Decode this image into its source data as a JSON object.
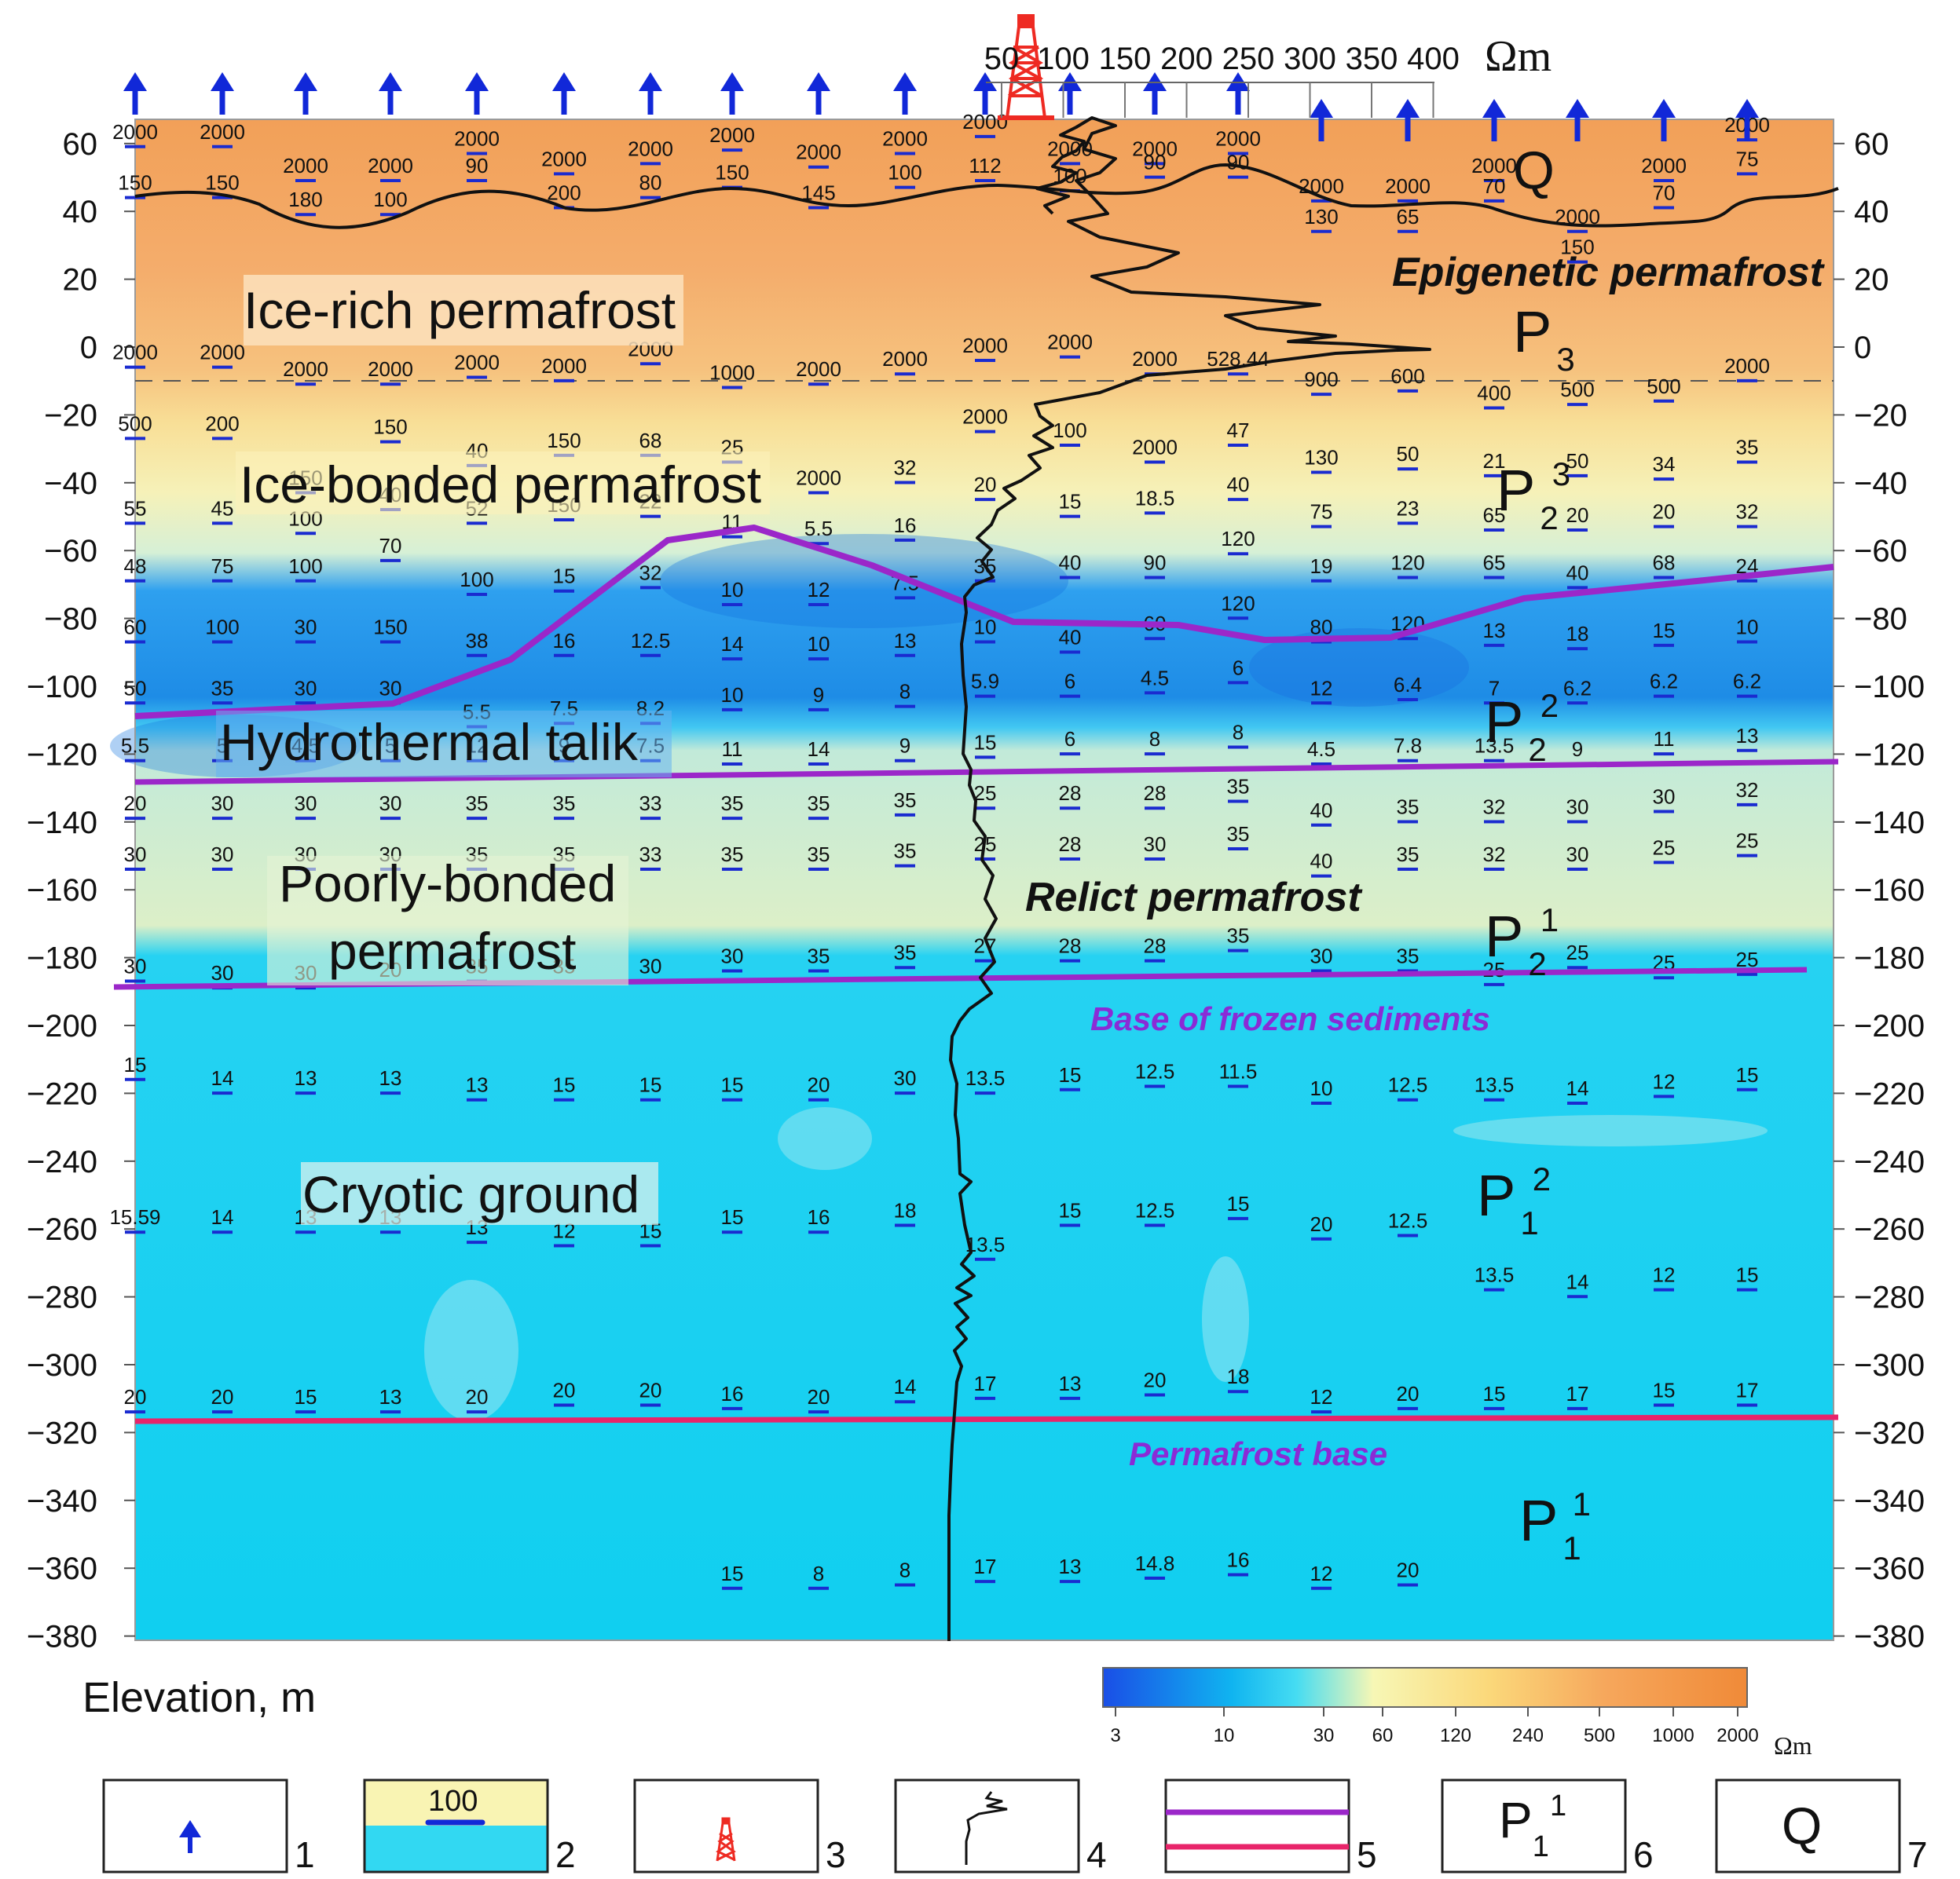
{
  "axis": {
    "ylabel": "Elevation, m",
    "y_ticks": [
      60,
      40,
      20,
      0,
      -20,
      -40,
      -60,
      -80,
      -100,
      -120,
      -140,
      -160,
      -180,
      -200,
      -220,
      -240,
      -260,
      -280,
      -300,
      -320,
      -340,
      -360,
      -380
    ]
  },
  "log_scale": {
    "ticks": [
      "50",
      "100",
      "150",
      "200",
      "250",
      "300",
      "350",
      "400"
    ],
    "unit": "Ωm"
  },
  "labels": {
    "ice_rich": "Ice-rich permafrost",
    "ice_bonded": "Ice-bonded permafrost",
    "talik": "Hydrothermal talik",
    "poorly_1": "Poorly-bonded",
    "poorly_2": "permafrost",
    "cryotic": "Cryotic ground",
    "epigenetic": "Epigenetic permafrost",
    "relict": "Relict permafrost",
    "base_frozen": "Base of frozen sediments",
    "permafrost_base": "Permafrost base",
    "q_label": "Q"
  },
  "strata": [
    {
      "base": "P",
      "sub": "3",
      "sup": ""
    },
    {
      "base": "P",
      "sub": "2",
      "sup": "3"
    },
    {
      "base": "P",
      "sub": "2",
      "sup": "2"
    },
    {
      "base": "P",
      "sub": "2",
      "sup": "1"
    },
    {
      "base": "P",
      "sub": "1",
      "sup": "2"
    },
    {
      "base": "P",
      "sub": "1",
      "sup": "1"
    }
  ],
  "colorbar": {
    "labels": [
      "3",
      "10",
      "30",
      "60",
      "120",
      "240",
      "500",
      "1000",
      "2000"
    ],
    "unit": "Ωm",
    "colors": [
      "#1a4ee6",
      "#10b4f0",
      "#45dcf2",
      "#f7f7b5",
      "#fbd87a",
      "#f6a75c",
      "#f08a38"
    ]
  },
  "legend": {
    "numbers": [
      "1",
      "2",
      "3",
      "4",
      "5",
      "6",
      "7"
    ],
    "item2_value": "100",
    "item6": {
      "base": "P",
      "sub": "1",
      "sup": "1"
    },
    "item7": "Q"
  },
  "colors": {
    "boundary": "#9b27c9",
    "permafrost_base": "#e8246a",
    "arrow": "#1128d8",
    "derrick": "#ee2a22"
  },
  "soundings": [
    {
      "x": 172,
      "values": [
        [
          "2000",
          60
        ],
        [
          "150",
          45
        ],
        [
          "2000",
          -5
        ],
        [
          "500",
          -26
        ],
        [
          "55",
          -51
        ],
        [
          "48",
          -68
        ],
        [
          "60",
          -86
        ],
        [
          "50",
          -104
        ],
        [
          "5.5",
          -121
        ],
        [
          "20",
          -138
        ],
        [
          "30",
          -153
        ],
        [
          "30",
          -186
        ],
        [
          "15",
          -215
        ],
        [
          "15.59",
          -260
        ],
        [
          "20",
          -313
        ]
      ]
    },
    {
      "x": 283,
      "values": [
        [
          "2000",
          60
        ],
        [
          "150",
          45
        ],
        [
          "2000",
          -5
        ],
        [
          "200",
          -26
        ],
        [
          "45",
          -51
        ],
        [
          "75",
          -68
        ],
        [
          "100",
          -86
        ],
        [
          "35",
          -104
        ],
        [
          "5",
          -121
        ],
        [
          "30",
          -138
        ],
        [
          "30",
          -153
        ],
        [
          "30",
          -188
        ],
        [
          "14",
          -219
        ],
        [
          "14",
          -260
        ],
        [
          "20",
          -313
        ]
      ]
    },
    {
      "x": 389,
      "values": [
        [
          "2000",
          50
        ],
        [
          "180",
          40
        ],
        [
          "2000",
          -10
        ],
        [
          "150",
          -42
        ],
        [
          "100",
          -54
        ],
        [
          "100",
          -68
        ],
        [
          "30",
          -86
        ],
        [
          "30",
          -104
        ],
        [
          "4.5",
          -121
        ],
        [
          "30",
          -138
        ],
        [
          "30",
          -153
        ],
        [
          "30",
          -188
        ],
        [
          "13",
          -219
        ],
        [
          "13",
          -260
        ],
        [
          "15",
          -313
        ]
      ]
    },
    {
      "x": 497,
      "values": [
        [
          "2000",
          50
        ],
        [
          "100",
          40
        ],
        [
          "2000",
          -10
        ],
        [
          "150",
          -27
        ],
        [
          "40",
          -47
        ],
        [
          "70",
          -62
        ],
        [
          "150",
          -86
        ],
        [
          "30",
          -104
        ],
        [
          "5",
          -121
        ],
        [
          "30",
          -138
        ],
        [
          "30",
          -153
        ],
        [
          "20",
          -187
        ],
        [
          "13",
          -219
        ],
        [
          "13",
          -260
        ],
        [
          "13",
          -313
        ]
      ]
    },
    {
      "x": 607,
      "values": [
        [
          "2000",
          58
        ],
        [
          "90",
          50
        ],
        [
          "2000",
          -8
        ],
        [
          "40",
          -34
        ],
        [
          "52",
          -51
        ],
        [
          "100",
          -72
        ],
        [
          "38",
          -90
        ],
        [
          "5.5",
          -111
        ],
        [
          "12",
          -121
        ],
        [
          "35",
          -138
        ],
        [
          "35",
          -153
        ],
        [
          "35",
          -186
        ],
        [
          "13",
          -221
        ],
        [
          "13",
          -263
        ],
        [
          "20",
          -313
        ]
      ]
    },
    {
      "x": 718,
      "values": [
        [
          "2000",
          52
        ],
        [
          "200",
          42
        ],
        [
          "2000",
          -9
        ],
        [
          "150",
          -31
        ],
        [
          "150",
          -50
        ],
        [
          "15",
          -71
        ],
        [
          "16",
          -90
        ],
        [
          "7.5",
          -110
        ],
        [
          "9",
          -121
        ],
        [
          "35",
          -138
        ],
        [
          "35",
          -153
        ],
        [
          "35",
          -186
        ],
        [
          "15",
          -221
        ],
        [
          "12",
          -264
        ],
        [
          "20",
          -311
        ]
      ]
    },
    {
      "x": 828,
      "values": [
        [
          "2000",
          55
        ],
        [
          "80",
          45
        ],
        [
          "2000",
          -4
        ],
        [
          "68",
          -31
        ],
        [
          "22",
          -49
        ],
        [
          "32",
          -70
        ],
        [
          "12.5",
          -90
        ],
        [
          "8.2",
          -110
        ],
        [
          "7.5",
          -121
        ],
        [
          "33",
          -138
        ],
        [
          "33",
          -153
        ],
        [
          "30",
          -186
        ],
        [
          "15",
          -221
        ],
        [
          "15",
          -264
        ],
        [
          "20",
          -311
        ]
      ]
    },
    {
      "x": 932,
      "values": [
        [
          "2000",
          59
        ],
        [
          "150",
          48
        ],
        [
          "1000",
          -11
        ],
        [
          "25",
          -33
        ],
        [
          "11",
          -55
        ],
        [
          "10",
          -75
        ],
        [
          "14",
          -91
        ],
        [
          "10",
          -106
        ],
        [
          "11",
          -122
        ],
        [
          "35",
          -138
        ],
        [
          "35",
          -153
        ],
        [
          "30",
          -183
        ],
        [
          "15",
          -221
        ],
        [
          "15",
          -260
        ],
        [
          "16",
          -312
        ]
      ]
    },
    {
      "x": 1042,
      "values": [
        [
          "2000",
          54
        ],
        [
          "145",
          42
        ],
        [
          "2000",
          -10
        ],
        [
          "2000",
          -42
        ],
        [
          "5.5",
          -57
        ],
        [
          "12",
          -75
        ],
        [
          "10",
          -91
        ],
        [
          "9",
          -106
        ],
        [
          "14",
          -122
        ],
        [
          "35",
          -138
        ],
        [
          "35",
          -153
        ],
        [
          "35",
          -183
        ],
        [
          "20",
          -221
        ],
        [
          "16",
          -260
        ],
        [
          "20",
          -313
        ]
      ]
    },
    {
      "x": 1152,
      "values": [
        [
          "2000",
          58
        ],
        [
          "100",
          48
        ],
        [
          "2000",
          -7
        ],
        [
          "32",
          -39
        ],
        [
          "16",
          -56
        ],
        [
          "7.5",
          -73
        ],
        [
          "13",
          -90
        ],
        [
          "8",
          -105
        ],
        [
          "9",
          -121
        ],
        [
          "35",
          -137
        ],
        [
          "35",
          -152
        ],
        [
          "35",
          -182
        ],
        [
          "30",
          -219
        ],
        [
          "18",
          -258
        ],
        [
          "14",
          -310
        ]
      ]
    },
    {
      "x": 1254,
      "values": [
        [
          "2000",
          63
        ],
        [
          "112",
          50
        ],
        [
          "2000",
          -3
        ],
        [
          "2000",
          -24
        ],
        [
          "20",
          -44
        ],
        [
          "35",
          -68
        ],
        [
          "10",
          -86
        ],
        [
          "5.9",
          -102
        ],
        [
          "15",
          -120
        ],
        [
          "25",
          -135
        ],
        [
          "25",
          -150
        ],
        [
          "27",
          -180
        ],
        [
          "13.5",
          -219
        ],
        [
          "13.5",
          -268
        ],
        [
          "17",
          -309
        ]
      ]
    },
    {
      "x": 1362,
      "values": [
        [
          "2000",
          55
        ],
        [
          "100",
          47
        ],
        [
          "2000",
          -2
        ],
        [
          "100",
          -28
        ],
        [
          "15",
          -49
        ],
        [
          "40",
          -67
        ],
        [
          "40",
          -89
        ],
        [
          "6",
          -102
        ],
        [
          "6",
          -119
        ],
        [
          "28",
          -135
        ],
        [
          "28",
          -150
        ],
        [
          "28",
          -180
        ],
        [
          "15",
          -218
        ],
        [
          "15",
          -258
        ],
        [
          "13",
          -309
        ]
      ]
    },
    {
      "x": 1470,
      "values": [
        [
          "2000",
          55
        ],
        [
          "90",
          51
        ],
        [
          "2000",
          -7
        ],
        [
          "2000",
          -33
        ],
        [
          "18.5",
          -48
        ],
        [
          "90",
          -67
        ],
        [
          "60",
          -85
        ],
        [
          "4.5",
          -101
        ],
        [
          "8",
          -119
        ],
        [
          "28",
          -135
        ],
        [
          "30",
          -150
        ],
        [
          "28",
          -180
        ],
        [
          "12.5",
          -217
        ],
        [
          "12.5",
          -258
        ],
        [
          "20",
          -308
        ]
      ]
    },
    {
      "x": 1576,
      "values": [
        [
          "2000",
          58
        ],
        [
          "90",
          51
        ],
        [
          "528.44",
          -7
        ],
        [
          "47",
          -28
        ],
        [
          "40",
          -44
        ],
        [
          "120",
          -60
        ],
        [
          "120",
          -79
        ],
        [
          "6",
          -98
        ],
        [
          "8",
          -117
        ],
        [
          "35",
          -133
        ],
        [
          "35",
          -147
        ],
        [
          "35",
          -177
        ],
        [
          "11.5",
          -217
        ],
        [
          "15",
          -256
        ],
        [
          "18",
          -307
        ]
      ]
    },
    {
      "x": 1682,
      "values": [
        [
          "2000",
          44
        ],
        [
          "130",
          35
        ],
        [
          "900",
          -13
        ],
        [
          "130",
          -36
        ],
        [
          "75",
          -52
        ],
        [
          "19",
          -68
        ],
        [
          "80",
          -86
        ],
        [
          "12",
          -104
        ],
        [
          "4.5",
          -122
        ],
        [
          "40",
          -140
        ],
        [
          "40",
          -155
        ],
        [
          "30",
          -183
        ],
        [
          "10",
          -222
        ],
        [
          "20",
          -262
        ],
        [
          "12",
          -313
        ]
      ]
    },
    {
      "x": 1792,
      "values": [
        [
          "2000",
          44
        ],
        [
          "65",
          35
        ],
        [
          "600",
          -12
        ],
        [
          "50",
          -35
        ],
        [
          "23",
          -51
        ],
        [
          "120",
          -67
        ],
        [
          "120",
          -85
        ],
        [
          "6.4",
          -103
        ],
        [
          "7.8",
          -121
        ],
        [
          "35",
          -139
        ],
        [
          "35",
          -153
        ],
        [
          "35",
          -183
        ],
        [
          "12.5",
          -221
        ],
        [
          "12.5",
          -261
        ],
        [
          "20",
          -312
        ]
      ]
    },
    {
      "x": 1902,
      "values": [
        [
          "2000",
          50
        ],
        [
          "70",
          44
        ],
        [
          "400",
          -17
        ],
        [
          "21",
          -37
        ],
        [
          "65",
          -53
        ],
        [
          "65",
          -67
        ],
        [
          "13",
          -87
        ],
        [
          "7",
          -104
        ],
        [
          "13.5",
          -121
        ],
        [
          "32",
          -139
        ],
        [
          "32",
          -153
        ],
        [
          "25",
          -187
        ],
        [
          "13.5",
          -221
        ],
        [
          "13.5",
          -277
        ],
        [
          "15",
          -312
        ]
      ]
    },
    {
      "x": 2008,
      "values": [
        [
          "2000",
          35
        ],
        [
          "150",
          26
        ],
        [
          "500",
          -16
        ],
        [
          "50",
          -37
        ],
        [
          "20",
          -53
        ],
        [
          "40",
          -70
        ],
        [
          "18",
          -88
        ],
        [
          "6.2",
          -104
        ],
        [
          "9",
          -122
        ],
        [
          "30",
          -139
        ],
        [
          "30",
          -153
        ],
        [
          "25",
          -182
        ],
        [
          "14",
          -222
        ],
        [
          "14",
          -279
        ],
        [
          "17",
          -312
        ]
      ]
    },
    {
      "x": 2118,
      "values": [
        [
          "2000",
          50
        ],
        [
          "70",
          42
        ],
        [
          "500",
          -15
        ],
        [
          "34",
          -38
        ],
        [
          "20",
          -52
        ],
        [
          "68",
          -67
        ],
        [
          "15",
          -87
        ],
        [
          "6.2",
          -102
        ],
        [
          "11",
          -119
        ],
        [
          "30",
          -136
        ],
        [
          "25",
          -151
        ],
        [
          "25",
          -185
        ],
        [
          "12",
          -220
        ],
        [
          "12",
          -277
        ],
        [
          "15",
          -311
        ]
      ]
    },
    {
      "x": 2224,
      "values": [
        [
          "2000",
          62
        ],
        [
          "75",
          52
        ],
        [
          "2000",
          -9
        ],
        [
          "35",
          -33
        ],
        [
          "32",
          -52
        ],
        [
          "24",
          -68
        ],
        [
          "10",
          -86
        ],
        [
          "6.2",
          -102
        ],
        [
          "13",
          -118
        ],
        [
          "32",
          -134
        ],
        [
          "25",
          -149
        ],
        [
          "25",
          -184
        ],
        [
          "15",
          -218
        ],
        [
          "15",
          -277
        ],
        [
          "17",
          -311
        ]
      ]
    }
  ],
  "deep_soundings": [
    {
      "x": 932,
      "v": "15",
      "y": -365
    },
    {
      "x": 1042,
      "v": "8",
      "y": -365
    },
    {
      "x": 1152,
      "v": "8",
      "y": -364
    },
    {
      "x": 1254,
      "v": "17",
      "y": -363
    },
    {
      "x": 1362,
      "v": "13",
      "y": -363
    },
    {
      "x": 1470,
      "v": "14.8",
      "y": -362
    },
    {
      "x": 1576,
      "v": "16",
      "y": -361
    },
    {
      "x": 1682,
      "v": "12",
      "y": -365
    },
    {
      "x": 1792,
      "v": "20",
      "y": -364
    }
  ]
}
